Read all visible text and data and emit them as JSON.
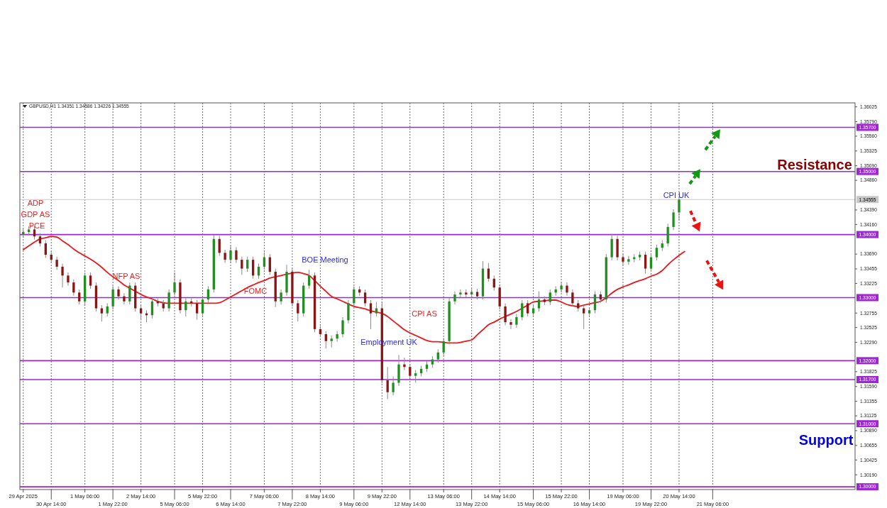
{
  "chart_data": {
    "type": "candlestick",
    "title": "GBPUSD,H1 1.34351 1.34586 1.34226 1.34555",
    "categories": [
      "29 Apr 2025",
      null,
      null,
      null,
      null,
      "30 Apr 14:00",
      null,
      null,
      null,
      null,
      null,
      "1 May 06:00",
      null,
      null,
      null,
      null,
      "1 May 22:00",
      null,
      null,
      null,
      null,
      "2 May 14:00",
      null,
      null,
      null,
      null,
      null,
      "5 May 06:00",
      null,
      null,
      null,
      null,
      "5 May 22:00",
      null,
      null,
      null,
      null,
      "6 May 14:00",
      null,
      null,
      null,
      null,
      null,
      "7 May 06:00",
      null,
      null,
      null,
      null,
      "7 May 22:00",
      null,
      null,
      null,
      null,
      "8 May 14:00",
      null,
      null,
      null,
      null,
      null,
      "9 May 06:00",
      null,
      null,
      null,
      null,
      "9 May 22:00",
      null,
      null,
      null,
      null,
      "12 May 14:00",
      null,
      null,
      null,
      null,
      null,
      "13 May 06:00",
      null,
      null,
      null,
      null,
      "13 May 22:00",
      null,
      null,
      null,
      null,
      "14 May 14:00",
      null,
      null,
      null,
      null,
      null,
      "15 May 06:00",
      null,
      null,
      null,
      null,
      "15 May 22:00",
      null,
      null,
      null,
      null,
      "16 May 14:00",
      null,
      null,
      null,
      null,
      null,
      "19 May 06:00",
      null,
      null,
      null,
      null,
      "19 May 22:00",
      null,
      null,
      null,
      null,
      "20 May 14:00",
      null,
      null,
      null,
      null,
      null,
      "21 May 06:00",
      null,
      null,
      null,
      null,
      null,
      null,
      null,
      null,
      null,
      null,
      null,
      null,
      null,
      null,
      null,
      null,
      null,
      null,
      null,
      null,
      null,
      null,
      null,
      null,
      null
    ],
    "ohlc": [
      [
        1.34,
        1.3409,
        1.3395,
        1.3404
      ],
      [
        1.3404,
        1.3413,
        1.3399,
        1.3408
      ],
      [
        1.3408,
        1.3413,
        1.3392,
        1.3397
      ],
      [
        1.3397,
        1.3402,
        1.3381,
        1.3386
      ],
      [
        1.3386,
        1.3391,
        1.3363,
        1.3368
      ],
      [
        1.3368,
        1.3373,
        1.3355,
        1.336
      ],
      [
        1.336,
        1.3365,
        1.3344,
        1.3349
      ],
      [
        1.3349,
        1.3354,
        1.3316,
        1.3335
      ],
      [
        1.3335,
        1.334,
        1.3319,
        1.3324
      ],
      [
        1.3324,
        1.3329,
        1.3303,
        1.3308
      ],
      [
        1.3308,
        1.3313,
        1.3289,
        1.3294
      ],
      [
        1.3294,
        1.334,
        1.3289,
        1.3335
      ],
      [
        1.3335,
        1.334,
        1.3314,
        1.3319
      ],
      [
        1.3319,
        1.3324,
        1.3278,
        1.3283
      ],
      [
        1.3283,
        1.3288,
        1.3262,
        1.3275
      ],
      [
        1.3275,
        1.3291,
        1.327,
        1.3286
      ],
      [
        1.3286,
        1.3318,
        1.3281,
        1.3313
      ],
      [
        1.3313,
        1.3318,
        1.3297,
        1.3302
      ],
      [
        1.3302,
        1.3307,
        1.3289,
        1.3294
      ],
      [
        1.3294,
        1.3324,
        1.3289,
        1.3319
      ],
      [
        1.3319,
        1.3324,
        1.3278,
        1.3283
      ],
      [
        1.3283,
        1.3288,
        1.3264,
        1.3275
      ],
      [
        1.3275,
        1.328,
        1.3261,
        1.3272
      ],
      [
        1.3272,
        1.3299,
        1.3267,
        1.3294
      ],
      [
        1.3294,
        1.3299,
        1.3286,
        1.3291
      ],
      [
        1.3291,
        1.3296,
        1.3278,
        1.3283
      ],
      [
        1.3283,
        1.3313,
        1.3278,
        1.3308
      ],
      [
        1.3308,
        1.334,
        1.3303,
        1.3324
      ],
      [
        1.3324,
        1.3329,
        1.3275,
        1.328
      ],
      [
        1.328,
        1.3299,
        1.327,
        1.3294
      ],
      [
        1.3294,
        1.3299,
        1.3286,
        1.3291
      ],
      [
        1.3291,
        1.3296,
        1.3265,
        1.3275
      ],
      [
        1.3275,
        1.3302,
        1.327,
        1.3297
      ],
      [
        1.3297,
        1.3318,
        1.3292,
        1.3313
      ],
      [
        1.3313,
        1.34,
        1.3308,
        1.3393
      ],
      [
        1.3393,
        1.3398,
        1.3366,
        1.3371
      ],
      [
        1.3371,
        1.3376,
        1.3355,
        1.336
      ],
      [
        1.336,
        1.3382,
        1.3355,
        1.3375
      ],
      [
        1.3375,
        1.338,
        1.3355,
        1.336
      ],
      [
        1.336,
        1.3365,
        1.3336,
        1.3346
      ],
      [
        1.3346,
        1.3365,
        1.3341,
        1.336
      ],
      [
        1.336,
        1.3365,
        1.333,
        1.3335
      ],
      [
        1.3335,
        1.3354,
        1.333,
        1.3349
      ],
      [
        1.3349,
        1.3372,
        1.3344,
        1.3364
      ],
      [
        1.3364,
        1.3369,
        1.3336,
        1.3341
      ],
      [
        1.3341,
        1.3346,
        1.3285,
        1.3294
      ],
      [
        1.3294,
        1.3313,
        1.3289,
        1.3308
      ],
      [
        1.3308,
        1.3352,
        1.3303,
        1.3341
      ],
      [
        1.3341,
        1.3346,
        1.3286,
        1.3291
      ],
      [
        1.3291,
        1.3296,
        1.3262,
        1.3275
      ],
      [
        1.3275,
        1.3324,
        1.327,
        1.3319
      ],
      [
        1.3319,
        1.3344,
        1.3314,
        1.3335
      ],
      [
        1.3335,
        1.334,
        1.3245,
        1.325
      ],
      [
        1.325,
        1.3255,
        1.3237,
        1.3242
      ],
      [
        1.3242,
        1.3247,
        1.3219,
        1.3231
      ],
      [
        1.3231,
        1.324,
        1.3221,
        1.3235
      ],
      [
        1.3235,
        1.3247,
        1.323,
        1.3242
      ],
      [
        1.3242,
        1.3269,
        1.3237,
        1.3264
      ],
      [
        1.3264,
        1.3296,
        1.3259,
        1.3291
      ],
      [
        1.3291,
        1.3318,
        1.3286,
        1.3313
      ],
      [
        1.3313,
        1.3318,
        1.3303,
        1.3308
      ],
      [
        1.3308,
        1.3313,
        1.3286,
        1.3291
      ],
      [
        1.3291,
        1.3296,
        1.325,
        1.3275
      ],
      [
        1.3275,
        1.3293,
        1.327,
        1.3283
      ],
      [
        1.3283,
        1.3292,
        1.3164,
        1.3169
      ],
      [
        1.3169,
        1.319,
        1.3139,
        1.315
      ],
      [
        1.315,
        1.3175,
        1.3145,
        1.3165
      ],
      [
        1.3165,
        1.3209,
        1.316,
        1.3194
      ],
      [
        1.3194,
        1.3205,
        1.3185,
        1.319
      ],
      [
        1.319,
        1.3195,
        1.3171,
        1.3176
      ],
      [
        1.3176,
        1.3185,
        1.3165,
        1.318
      ],
      [
        1.318,
        1.3192,
        1.3175,
        1.3187
      ],
      [
        1.3187,
        1.3199,
        1.3182,
        1.3194
      ],
      [
        1.3194,
        1.3207,
        1.3189,
        1.3202
      ],
      [
        1.3202,
        1.3218,
        1.3197,
        1.3213
      ],
      [
        1.3213,
        1.3236,
        1.3208,
        1.3231
      ],
      [
        1.3231,
        1.3299,
        1.3226,
        1.3294
      ],
      [
        1.3294,
        1.331,
        1.3289,
        1.3305
      ],
      [
        1.3305,
        1.3313,
        1.33,
        1.3308
      ],
      [
        1.3308,
        1.3313,
        1.33,
        1.3305
      ],
      [
        1.3305,
        1.3314,
        1.33,
        1.3309
      ],
      [
        1.3309,
        1.3314,
        1.3297,
        1.3302
      ],
      [
        1.3302,
        1.3358,
        1.3297,
        1.3346
      ],
      [
        1.3346,
        1.3355,
        1.3325,
        1.333
      ],
      [
        1.333,
        1.3335,
        1.3311,
        1.3316
      ],
      [
        1.3316,
        1.3321,
        1.3281,
        1.3286
      ],
      [
        1.3286,
        1.3291,
        1.3256,
        1.3261
      ],
      [
        1.3261,
        1.3266,
        1.325,
        1.3257
      ],
      [
        1.3257,
        1.3274,
        1.3252,
        1.3269
      ],
      [
        1.3269,
        1.3296,
        1.3264,
        1.3291
      ],
      [
        1.3291,
        1.3296,
        1.327,
        1.3275
      ],
      [
        1.3275,
        1.3288,
        1.327,
        1.3283
      ],
      [
        1.3283,
        1.331,
        1.3278,
        1.3297
      ],
      [
        1.3297,
        1.3302,
        1.3288,
        1.3293
      ],
      [
        1.3293,
        1.3313,
        1.3288,
        1.3308
      ],
      [
        1.3308,
        1.3318,
        1.3303,
        1.3313
      ],
      [
        1.3313,
        1.3324,
        1.3308,
        1.3319
      ],
      [
        1.3319,
        1.3324,
        1.3303,
        1.3308
      ],
      [
        1.3308,
        1.3313,
        1.3286,
        1.3291
      ],
      [
        1.3291,
        1.3296,
        1.3278,
        1.3283
      ],
      [
        1.3283,
        1.3288,
        1.325,
        1.3275
      ],
      [
        1.3275,
        1.3285,
        1.327,
        1.328
      ],
      [
        1.328,
        1.331,
        1.3275,
        1.3305
      ],
      [
        1.3305,
        1.331,
        1.3292,
        1.3297
      ],
      [
        1.3297,
        1.3369,
        1.3292,
        1.3364
      ],
      [
        1.3364,
        1.3401,
        1.3359,
        1.3393
      ],
      [
        1.3393,
        1.3398,
        1.3359,
        1.3364
      ],
      [
        1.3364,
        1.3369,
        1.3352,
        1.3357
      ],
      [
        1.3357,
        1.3366,
        1.3352,
        1.3361
      ],
      [
        1.3361,
        1.3369,
        1.3356,
        1.3364
      ],
      [
        1.3364,
        1.3373,
        1.3359,
        1.3368
      ],
      [
        1.3368,
        1.3373,
        1.3338,
        1.3346
      ],
      [
        1.3346,
        1.3369,
        1.3341,
        1.3364
      ],
      [
        1.3364,
        1.3384,
        1.3359,
        1.3379
      ],
      [
        1.3379,
        1.3391,
        1.3374,
        1.3386
      ],
      [
        1.3386,
        1.3417,
        1.3381,
        1.3412
      ],
      [
        1.3412,
        1.344,
        1.3407,
        1.34351
      ],
      [
        1.34351,
        1.34586,
        1.34226,
        1.34555
      ],
      null,
      null,
      null,
      null,
      null,
      null,
      null,
      null,
      null,
      null,
      null,
      null,
      null,
      null,
      null,
      null,
      null,
      null,
      null,
      null,
      null,
      null,
      null,
      null,
      null,
      null,
      null,
      null,
      null,
      null,
      null
    ],
    "series": [
      {
        "type": "line",
        "color": "#e8191c",
        "values": [
          1.3376,
          1.3382,
          1.3388,
          1.3393,
          1.3395,
          1.3397,
          1.3396,
          1.339,
          1.3384,
          1.3377,
          1.3371,
          1.3366,
          1.3361,
          1.3355,
          1.3348,
          1.334,
          1.3333,
          1.3327,
          1.332,
          1.3315,
          1.331,
          1.3305,
          1.3301,
          1.3298,
          1.3294,
          1.3292,
          1.3291,
          1.3291,
          1.3291,
          1.3291,
          1.3291,
          1.3291,
          1.3291,
          1.3291,
          1.3291,
          1.3292,
          1.3296,
          1.3301,
          1.3306,
          1.3311,
          1.3316,
          1.332,
          1.3324,
          1.3327,
          1.3331,
          1.3333,
          1.3335,
          1.3337,
          1.3339,
          1.334,
          1.3338,
          1.3335,
          1.3327,
          1.3318,
          1.331,
          1.3302,
          1.3298,
          1.3294,
          1.329,
          1.3286,
          1.3284,
          1.3282,
          1.3279,
          1.3277,
          1.3275,
          1.327,
          1.3263,
          1.3256,
          1.3249,
          1.3244,
          1.324,
          1.3236,
          1.3232,
          1.323,
          1.323,
          1.3229,
          1.3228,
          1.3228,
          1.3229,
          1.3231,
          1.3233,
          1.3241,
          1.3249,
          1.3257,
          1.3261,
          1.3266,
          1.327,
          1.3274,
          1.3278,
          1.3283,
          1.3288,
          1.3293,
          1.3294,
          1.3295,
          1.3296,
          1.3296,
          1.3293,
          1.3289,
          1.3287,
          1.3286,
          1.3288,
          1.329,
          1.3292,
          1.3294,
          1.33,
          1.3307,
          1.3313,
          1.3317,
          1.332,
          1.3324,
          1.3327,
          1.333,
          1.3334,
          1.3337,
          1.3343,
          1.3352,
          1.336,
          1.3367,
          1.3373,
          null,
          null,
          null,
          null,
          null,
          null,
          null,
          null,
          null,
          null,
          null,
          null,
          null,
          null,
          null,
          null,
          null,
          null,
          null,
          null,
          null,
          null,
          null,
          null,
          null,
          null,
          null,
          null,
          null,
          null
        ]
      }
    ],
    "ylim": [
      1.29956,
      1.36088
    ],
    "yticks": [
      1.36025,
      {
        "value": 1.3579,
        "label": "1.35790"
      },
      {
        "value": 1.3556,
        "label": "1.35560"
      },
      1.35325,
      {
        "value": 1.3509,
        "label": "1.35090"
      },
      {
        "value": 1.3486,
        "label": "1.34860"
      },
      {
        "value": 1.3439,
        "label": "1.34390"
      },
      {
        "value": 1.3416,
        "label": "1.34160"
      },
      {
        "value": 1.3369,
        "label": "1.33690"
      },
      1.33455,
      1.33225,
      1.32755,
      1.32525,
      {
        "value": 1.3229,
        "label": "1.32290"
      },
      1.31825,
      {
        "value": 1.3159,
        "label": "1.31590"
      },
      1.31355,
      1.31125,
      {
        "value": 1.3089,
        "label": "1.30890"
      },
      1.30655,
      1.30425,
      {
        "value": 1.3019,
        "label": "1.30190"
      }
    ],
    "grid": "x",
    "ref_lines": [
      {
        "axis": "y",
        "value": 1.357,
        "label": "1.35700",
        "color": "#9c27d6"
      },
      {
        "axis": "y",
        "value": 1.35,
        "label": "1.35000",
        "color": "#9c27d6"
      },
      {
        "axis": "y",
        "value": 1.34555,
        "label": "1.34555",
        "color": "#c8c8c8"
      },
      {
        "axis": "y",
        "value": 1.34,
        "label": "1.34000",
        "color": "#9c27d6"
      },
      {
        "axis": "y",
        "value": 1.33,
        "label": "1.33000",
        "color": "#9c27d6"
      },
      {
        "axis": "y",
        "value": 1.32,
        "label": "1.32000",
        "color": "#9c27d6"
      },
      {
        "axis": "y",
        "value": 1.317,
        "label": "1.31700",
        "color": "#9c27d6"
      },
      {
        "axis": "y",
        "value": 1.31,
        "label": "1.31000",
        "color": "#9c27d6"
      },
      {
        "axis": "y",
        "value": 1.3,
        "label": "1.30000",
        "color": "#9c27d6"
      }
    ],
    "annotations": [
      "ADP",
      "GDP AS",
      "PCE",
      "NFP AS",
      "FOMC",
      "BOE Meeting",
      "CPI AS",
      "Employment UK",
      "CPI UK",
      "Resistance",
      "Support"
    ]
  }
}
